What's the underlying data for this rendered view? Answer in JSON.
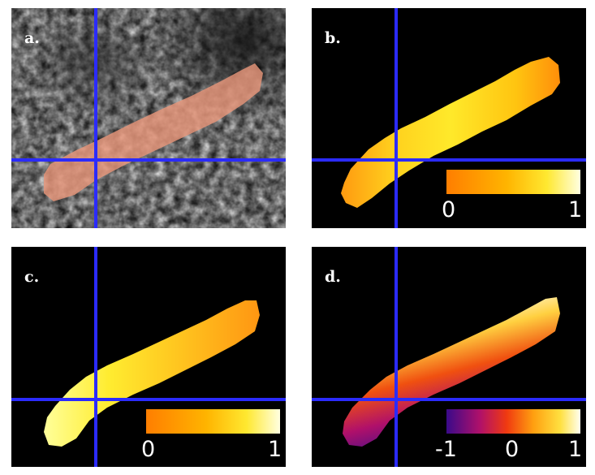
{
  "panels": {
    "a": {
      "label": "a."
    },
    "b": {
      "label": "b.",
      "colorbar": {
        "min_label": "0",
        "max_label": "1",
        "colormap": "hot"
      }
    },
    "c": {
      "label": "c.",
      "colorbar": {
        "min_label": "0",
        "max_label": "1",
        "colormap": "hot"
      }
    },
    "d": {
      "label": "d.",
      "colorbar": {
        "min_label": "-1",
        "mid_label": "0",
        "max_label": "1",
        "colormap": "inferno-diverging"
      }
    }
  },
  "colors": {
    "crosshair": "#2b2bff",
    "segmentation_overlay": "#e8967a",
    "background": "#000000"
  }
}
